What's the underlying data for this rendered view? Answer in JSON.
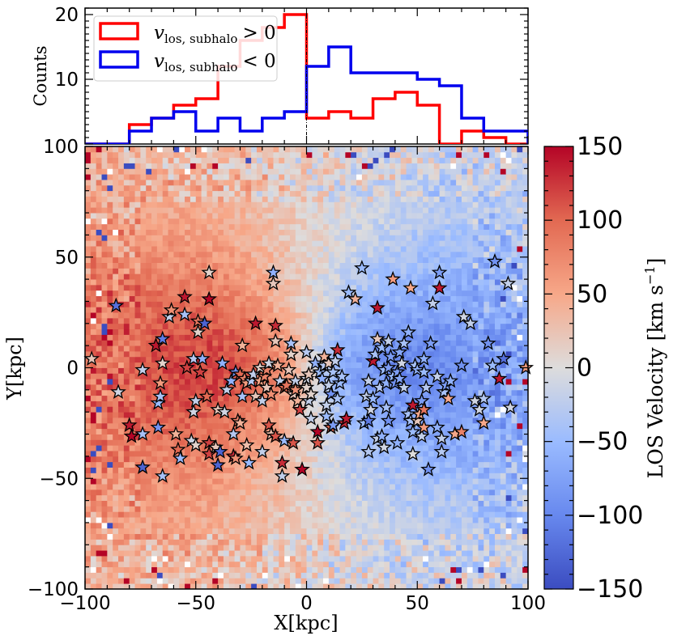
{
  "chart_data": [
    {
      "id": "histogram",
      "type": "histogram",
      "ylabel": "Counts",
      "xlim": [
        -100,
        100
      ],
      "ylim": [
        0,
        21
      ],
      "yticks": [
        10,
        20
      ],
      "bin_edges": [
        -100,
        -90,
        -80,
        -70,
        -60,
        -50,
        -40,
        -30,
        -20,
        -10,
        0,
        10,
        20,
        30,
        40,
        50,
        60,
        70,
        80,
        90,
        100
      ],
      "series": [
        {
          "name": "v_los, subhalo > 0",
          "label_main": "v",
          "label_sub": "los, subhalo",
          "label_rel": "> 0",
          "color": "#ff0000",
          "values": [
            0,
            0,
            3,
            4,
            6,
            7,
            12,
            16,
            18,
            20,
            4,
            5,
            4,
            7,
            8,
            6,
            0,
            2,
            1,
            0
          ]
        },
        {
          "name": "v_los, subhalo < 0",
          "label_main": "v",
          "label_sub": "los, subhalo",
          "label_rel": "< 0",
          "color": "#0000ee",
          "values": [
            0,
            0,
            2,
            4,
            5,
            2,
            4,
            2,
            4,
            5,
            12,
            15,
            11,
            11,
            11,
            10,
            9,
            4,
            2,
            2
          ]
        }
      ],
      "vline_x": 0,
      "legend_position": "upper-left"
    },
    {
      "id": "velocity-map",
      "type": "heatmap",
      "xlabel": "X[kpc]",
      "ylabel": "Y[kpc]",
      "xlim": [
        -100,
        100
      ],
      "ylim": [
        -100,
        100
      ],
      "xticks": [
        -100,
        -50,
        0,
        50,
        100
      ],
      "yticks": [
        -100,
        -50,
        0,
        50,
        100
      ],
      "grid_bins": 80,
      "colormap": "coolwarm",
      "colorbar": {
        "label": "LOS Velocity [km s^-1]",
        "label_text": "LOS Velocity",
        "unit_text": "[km s",
        "unit_exp": "−1",
        "unit_close": "]",
        "range": [
          -150,
          150
        ],
        "ticks": [
          -150,
          -100,
          -50,
          0,
          50,
          100,
          150
        ]
      },
      "stars": [
        [
          -97,
          4,
          20
        ],
        [
          -86,
          28,
          -120
        ],
        [
          -85,
          -11,
          -10
        ],
        [
          -80,
          -26,
          140
        ],
        [
          -79,
          -31,
          150
        ],
        [
          -74,
          -45,
          -130
        ],
        [
          -74,
          -30,
          -40
        ],
        [
          -74,
          -1,
          -20
        ],
        [
          -68,
          10,
          140
        ],
        [
          -67,
          -27,
          -90
        ],
        [
          -67,
          -16,
          -50
        ],
        [
          -66,
          -13,
          -40
        ],
        [
          -66,
          -7,
          60
        ],
        [
          -65,
          2,
          10
        ],
        [
          -65,
          13,
          -110
        ],
        [
          -65,
          -49,
          -40
        ],
        [
          -62,
          23,
          -20
        ],
        [
          -61,
          26,
          70
        ],
        [
          -59,
          -30,
          40
        ],
        [
          -58,
          -37,
          100
        ],
        [
          -57,
          -41,
          -50
        ],
        [
          -55,
          24,
          -40
        ],
        [
          -55,
          32,
          140
        ],
        [
          -54,
          0,
          120
        ],
        [
          -52,
          -33,
          -10
        ],
        [
          -51,
          -20,
          -10
        ],
        [
          -51,
          4,
          -30
        ],
        [
          -50,
          -35,
          10
        ],
        [
          -50,
          -15,
          -20
        ],
        [
          -49,
          16,
          10
        ],
        [
          -49,
          21,
          90
        ],
        [
          -48,
          -2,
          120
        ],
        [
          -47,
          4,
          -60
        ],
        [
          -46,
          20,
          -130
        ],
        [
          -45,
          -13,
          100
        ],
        [
          -44,
          -34,
          120
        ],
        [
          -44,
          -39,
          120
        ],
        [
          -44,
          31,
          150
        ],
        [
          -44,
          43,
          10
        ],
        [
          -41,
          -36,
          20
        ],
        [
          -40,
          -19,
          20
        ],
        [
          -40,
          -44,
          -130
        ],
        [
          -39,
          -38,
          -130
        ],
        [
          -38,
          2,
          -60
        ],
        [
          -37,
          -20,
          -10
        ],
        [
          -36,
          -10,
          -20
        ],
        [
          -34,
          -6,
          -60
        ],
        [
          -33,
          -40,
          130
        ],
        [
          -33,
          -30,
          -30
        ],
        [
          -32,
          -2,
          -90
        ],
        [
          -32,
          -41,
          70
        ],
        [
          -31,
          -24,
          80
        ],
        [
          -30,
          -3,
          100
        ],
        [
          -30,
          -25,
          40
        ],
        [
          -29,
          -13,
          -40
        ],
        [
          -29,
          10,
          40
        ],
        [
          -28,
          -5,
          80
        ],
        [
          -27,
          -7,
          60
        ],
        [
          -27,
          -35,
          30
        ],
        [
          -26,
          -43,
          -50
        ],
        [
          -25,
          -6,
          -30
        ],
        [
          -24,
          -3,
          -20
        ],
        [
          -23,
          -13,
          20
        ],
        [
          -23,
          20,
          140
        ],
        [
          -21,
          0,
          10
        ],
        [
          -21,
          -6,
          50
        ],
        [
          -20,
          -15,
          -20
        ],
        [
          -20,
          -38,
          -20
        ],
        [
          -19,
          -4,
          80
        ],
        [
          -18,
          -9,
          20
        ],
        [
          -18,
          -1,
          80
        ],
        [
          -17,
          -26,
          110
        ],
        [
          -17,
          2,
          -10
        ],
        [
          -16,
          -12,
          70
        ],
        [
          -16,
          -30,
          30
        ],
        [
          -15,
          38,
          20
        ],
        [
          -15,
          43,
          -60
        ],
        [
          -14,
          -31,
          110
        ],
        [
          -14,
          12,
          20
        ],
        [
          -14,
          19,
          130
        ],
        [
          -13,
          1,
          40
        ],
        [
          -12,
          -6,
          -20
        ],
        [
          -11,
          -43,
          130
        ],
        [
          -11,
          -49,
          -20
        ],
        [
          -10,
          -33,
          -50
        ],
        [
          -10,
          -9,
          100
        ],
        [
          -9,
          -8,
          90
        ],
        [
          -8,
          -1,
          20
        ],
        [
          -7,
          6,
          10
        ],
        [
          -7,
          11,
          -40
        ],
        [
          -6,
          -12,
          20
        ],
        [
          -6,
          -34,
          110
        ],
        [
          -5,
          -6,
          -20
        ],
        [
          -5,
          -10,
          70
        ],
        [
          -4,
          -15,
          40
        ],
        [
          -3,
          -19,
          120
        ],
        [
          -2,
          -46,
          150
        ],
        [
          0,
          7,
          -30
        ],
        [
          0,
          -5,
          -10
        ],
        [
          0,
          -9,
          10
        ],
        [
          1,
          -3,
          20
        ],
        [
          1,
          -15,
          -20
        ],
        [
          2,
          -23,
          -20
        ],
        [
          2,
          -12,
          10
        ],
        [
          4,
          2,
          -60
        ],
        [
          5,
          -29,
          150
        ],
        [
          5,
          -34,
          110
        ],
        [
          6,
          -2,
          -50
        ],
        [
          7,
          -5,
          -60
        ],
        [
          8,
          1,
          -30
        ],
        [
          8,
          5,
          40
        ],
        [
          9,
          -22,
          -50
        ],
        [
          9,
          -17,
          -20
        ],
        [
          10,
          -8,
          -20
        ],
        [
          10,
          2,
          20
        ],
        [
          11,
          -12,
          -90
        ],
        [
          11,
          -27,
          100
        ],
        [
          12,
          -26,
          -80
        ],
        [
          12,
          -2,
          -40
        ],
        [
          13,
          3,
          -20
        ],
        [
          14,
          -14,
          -40
        ],
        [
          14,
          8,
          130
        ],
        [
          15,
          -7,
          -50
        ],
        [
          16,
          -4,
          -40
        ],
        [
          17,
          -25,
          130
        ],
        [
          18,
          -23,
          140
        ],
        [
          19,
          34,
          -50
        ],
        [
          22,
          31,
          40
        ],
        [
          25,
          45,
          -50
        ],
        [
          26,
          -25,
          -50
        ],
        [
          27,
          -13,
          -20
        ],
        [
          28,
          -6,
          -20
        ],
        [
          28,
          -24,
          -110
        ],
        [
          28,
          -38,
          -30
        ],
        [
          29,
          -19,
          -10
        ],
        [
          30,
          -14,
          -50
        ],
        [
          30,
          3,
          140
        ],
        [
          31,
          6,
          -40
        ],
        [
          32,
          -32,
          -20
        ],
        [
          32,
          13,
          20
        ],
        [
          32,
          27,
          140
        ],
        [
          33,
          -9,
          -30
        ],
        [
          34,
          9,
          -50
        ],
        [
          34,
          -31,
          -60
        ],
        [
          35,
          -1,
          -50
        ],
        [
          35,
          -36,
          -10
        ],
        [
          36,
          -18,
          -40
        ],
        [
          36,
          -7,
          -60
        ],
        [
          37,
          -24,
          -90
        ],
        [
          37,
          0,
          -80
        ],
        [
          37,
          12,
          -20
        ],
        [
          38,
          5,
          -80
        ],
        [
          39,
          40,
          60
        ],
        [
          39,
          -4,
          -50
        ],
        [
          40,
          -7,
          -90
        ],
        [
          41,
          -2,
          -80
        ],
        [
          41,
          -34,
          -60
        ],
        [
          42,
          -5,
          -70
        ],
        [
          42,
          7,
          -70
        ],
        [
          43,
          2,
          -10
        ],
        [
          44,
          -9,
          -20
        ],
        [
          44,
          11,
          -40
        ],
        [
          46,
          16,
          -60
        ],
        [
          46,
          -21,
          -40
        ],
        [
          47,
          -24,
          -40
        ],
        [
          47,
          36,
          50
        ],
        [
          48,
          -29,
          -50
        ],
        [
          48,
          -17,
          140
        ],
        [
          48,
          -39,
          0
        ],
        [
          49,
          1,
          -40
        ],
        [
          50,
          -1,
          -60
        ],
        [
          50,
          -24,
          20
        ],
        [
          51,
          -21,
          50
        ],
        [
          52,
          -31,
          -20
        ],
        [
          52,
          -15,
          -80
        ],
        [
          53,
          4,
          -60
        ],
        [
          53,
          -2,
          -50
        ],
        [
          53,
          -19,
          90
        ],
        [
          53,
          -27,
          60
        ],
        [
          54,
          -9,
          -30
        ],
        [
          55,
          -46,
          -90
        ],
        [
          56,
          11,
          -80
        ],
        [
          57,
          29,
          -20
        ],
        [
          59,
          -27,
          -60
        ],
        [
          59,
          -4,
          -20
        ],
        [
          60,
          36,
          140
        ],
        [
          60,
          43,
          -80
        ],
        [
          61,
          -38,
          -30
        ],
        [
          61,
          -32,
          -20
        ],
        [
          62,
          -11,
          -40
        ],
        [
          63,
          -8,
          -80
        ],
        [
          64,
          -14,
          50
        ],
        [
          65,
          -6,
          -60
        ],
        [
          67,
          -30,
          50
        ],
        [
          70,
          1,
          -90
        ],
        [
          70,
          -29,
          80
        ],
        [
          71,
          23,
          -10
        ],
        [
          74,
          20,
          -20
        ],
        [
          76,
          -15,
          -10
        ],
        [
          78,
          -19,
          -10
        ],
        [
          80,
          -14,
          -30
        ],
        [
          80,
          -25,
          50
        ],
        [
          82,
          11,
          -90
        ],
        [
          84,
          1,
          -50
        ],
        [
          85,
          48,
          -90
        ],
        [
          87,
          -5,
          140
        ],
        [
          89,
          4,
          -120
        ],
        [
          91,
          38,
          -20
        ],
        [
          92,
          -18,
          -10
        ],
        [
          99,
          0,
          60
        ]
      ]
    }
  ]
}
